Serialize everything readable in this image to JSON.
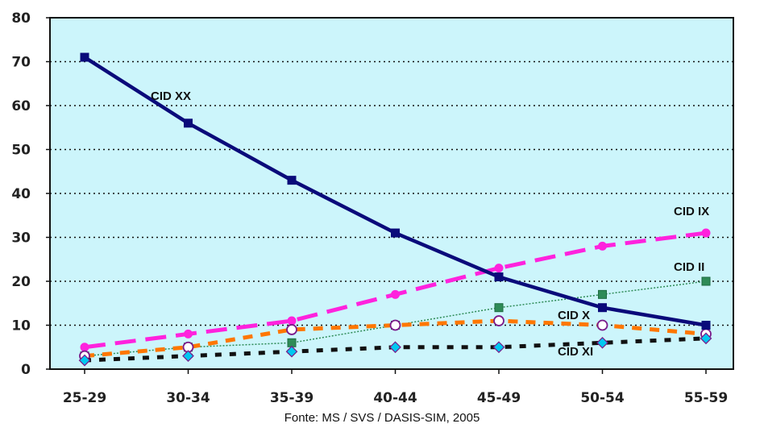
{
  "chart_data": {
    "type": "line",
    "categories": [
      "25-29",
      "30-34",
      "35-39",
      "40-44",
      "45-49",
      "50-54",
      "55-59"
    ],
    "ylim": [
      0,
      80
    ],
    "yticks": [
      0,
      10,
      20,
      30,
      40,
      50,
      60,
      70,
      80
    ],
    "grid": true,
    "series": [
      {
        "name": "CID XX",
        "color": "#0a0a7a",
        "values": [
          71,
          56,
          43,
          31,
          21,
          14,
          10
        ]
      },
      {
        "name": "CID IX",
        "color": "#ff22dd",
        "values": [
          5,
          8,
          11,
          17,
          23,
          28,
          31
        ]
      },
      {
        "name": "CID II",
        "color": "#2e8b57",
        "values": [
          3,
          5,
          6,
          10,
          14,
          17,
          20
        ]
      },
      {
        "name": "CID X",
        "color": "#ff7700",
        "values": [
          3,
          5,
          9,
          10,
          11,
          10,
          8
        ]
      },
      {
        "name": "CID XI",
        "color": "#00c8f0",
        "values": [
          2,
          3,
          4,
          5,
          5,
          6,
          7
        ]
      }
    ]
  },
  "source": "Fonte: MS / SVS / DASIS-SIM, 2005"
}
